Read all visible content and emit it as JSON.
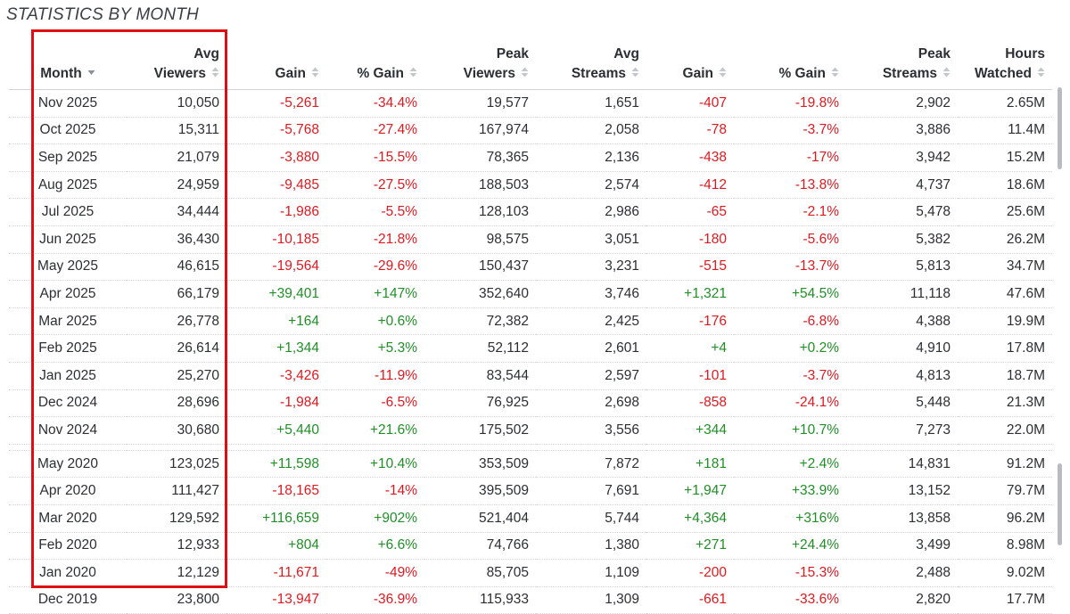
{
  "title": "STATISTICS BY MONTH",
  "columns": [
    {
      "line1": "",
      "line2": "Month"
    },
    {
      "line1": "Avg",
      "line2": "Viewers"
    },
    {
      "line1": "",
      "line2": "Gain"
    },
    {
      "line1": "",
      "line2": "% Gain"
    },
    {
      "line1": "Peak",
      "line2": "Viewers"
    },
    {
      "line1": "Avg",
      "line2": "Streams"
    },
    {
      "line1": "",
      "line2": "Gain"
    },
    {
      "line1": "",
      "line2": "% Gain"
    },
    {
      "line1": "Peak",
      "line2": "Streams"
    },
    {
      "line1": "Hours",
      "line2": "Watched"
    }
  ],
  "rows": [
    [
      "Nov 2025",
      "10,050",
      "-5,261",
      "-34.4%",
      "19,577",
      "1,651",
      "-407",
      "-19.8%",
      "2,902",
      "2.65M"
    ],
    [
      "Oct 2025",
      "15,311",
      "-5,768",
      "-27.4%",
      "167,974",
      "2,058",
      "-78",
      "-3.7%",
      "3,886",
      "11.4M"
    ],
    [
      "Sep 2025",
      "21,079",
      "-3,880",
      "-15.5%",
      "78,365",
      "2,136",
      "-438",
      "-17%",
      "3,942",
      "15.2M"
    ],
    [
      "Aug 2025",
      "24,959",
      "-9,485",
      "-27.5%",
      "188,503",
      "2,574",
      "-412",
      "-13.8%",
      "4,737",
      "18.6M"
    ],
    [
      "Jul 2025",
      "34,444",
      "-1,986",
      "-5.5%",
      "128,103",
      "2,986",
      "-65",
      "-2.1%",
      "5,478",
      "25.6M"
    ],
    [
      "Jun 2025",
      "36,430",
      "-10,185",
      "-21.8%",
      "98,575",
      "3,051",
      "-180",
      "-5.6%",
      "5,382",
      "26.2M"
    ],
    [
      "May 2025",
      "46,615",
      "-19,564",
      "-29.6%",
      "150,437",
      "3,231",
      "-515",
      "-13.7%",
      "5,813",
      "34.7M"
    ],
    [
      "Apr 2025",
      "66,179",
      "+39,401",
      "+147%",
      "352,640",
      "3,746",
      "+1,321",
      "+54.5%",
      "11,118",
      "47.6M"
    ],
    [
      "Mar 2025",
      "26,778",
      "+164",
      "+0.6%",
      "72,382",
      "2,425",
      "-176",
      "-6.8%",
      "4,388",
      "19.9M"
    ],
    [
      "Feb 2025",
      "26,614",
      "+1,344",
      "+5.3%",
      "52,112",
      "2,601",
      "+4",
      "+0.2%",
      "4,910",
      "17.8M"
    ],
    [
      "Jan 2025",
      "25,270",
      "-3,426",
      "-11.9%",
      "83,544",
      "2,597",
      "-101",
      "-3.7%",
      "4,813",
      "18.7M"
    ],
    [
      "Dec 2024",
      "28,696",
      "-1,984",
      "-6.5%",
      "76,925",
      "2,698",
      "-858",
      "-24.1%",
      "5,448",
      "21.3M"
    ],
    [
      "Nov 2024",
      "30,680",
      "+5,440",
      "+21.6%",
      "175,502",
      "3,556",
      "+344",
      "+10.7%",
      "7,273",
      "22.0M"
    ],
    [
      "May 2020",
      "123,025",
      "+11,598",
      "+10.4%",
      "353,509",
      "7,872",
      "+181",
      "+2.4%",
      "14,831",
      "91.2M"
    ],
    [
      "Apr 2020",
      "111,427",
      "-18,165",
      "-14%",
      "395,509",
      "7,691",
      "+1,947",
      "+33.9%",
      "13,152",
      "79.7M"
    ],
    [
      "Mar 2020",
      "129,592",
      "+116,659",
      "+902%",
      "521,404",
      "5,744",
      "+4,364",
      "+316%",
      "13,858",
      "96.2M"
    ],
    [
      "Feb 2020",
      "12,933",
      "+804",
      "+6.6%",
      "74,766",
      "1,380",
      "+271",
      "+24.4%",
      "3,499",
      "8.98M"
    ],
    [
      "Jan 2020",
      "12,129",
      "-11,671",
      "-49%",
      "85,705",
      "1,109",
      "-200",
      "-15.3%",
      "2,488",
      "9.02M"
    ],
    [
      "Dec 2019",
      "23,800",
      "-13,947",
      "-36.9%",
      "115,933",
      "1,309",
      "-661",
      "-33.6%",
      "2,820",
      "17.7M"
    ]
  ],
  "colors": {
    "negative": "#e0191f",
    "positive": "#1f8f26",
    "highlight": "#e00d12"
  },
  "icons": {
    "sort_active": "caret-down-icon",
    "sort_inactive": "sort-both-icon"
  }
}
